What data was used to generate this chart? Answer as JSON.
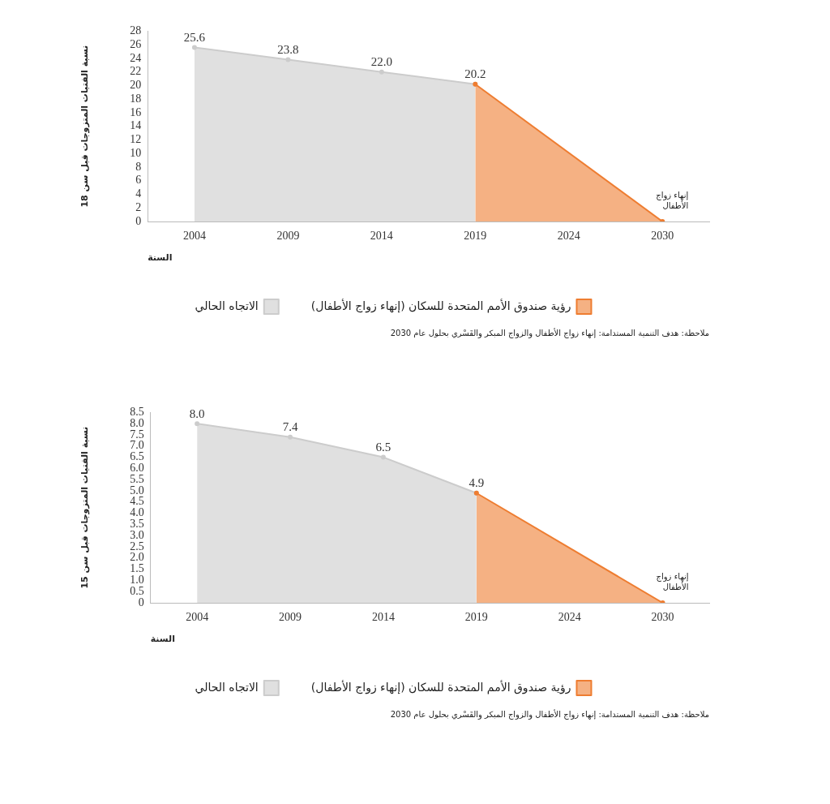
{
  "chart_data": [
    {
      "type": "area",
      "xlabel": "السنة",
      "ylabel": "نسبة الفتيات المتزوجات قبل سن 18",
      "categories": [
        "2004",
        "2009",
        "2014",
        "2019",
        "2024",
        "2030"
      ],
      "series": [
        {
          "name": "رؤية صندوق الأمم المتحدة للسكان (إنهاء زواج الأطفال)",
          "color": "#ee7d31",
          "values": [
            null,
            null,
            null,
            20.2,
            null,
            0
          ]
        },
        {
          "name": "الاتجاه الحالي",
          "color": "#cccccc",
          "values": [
            25.6,
            23.8,
            22.0,
            20.2,
            null,
            null
          ],
          "value_labels": [
            "25.6",
            "23.8",
            "22.0",
            "20.2",
            null,
            null
          ]
        }
      ],
      "ylim": [
        0,
        28
      ],
      "yticks": [
        0,
        2,
        4,
        6,
        8,
        10,
        12,
        14,
        16,
        18,
        20,
        22,
        24,
        26,
        28
      ],
      "grid": false,
      "legend": "bottom",
      "marker": "circle",
      "annotations": [
        {
          "text": "إنهاء زواج الأطفال",
          "x": "2030",
          "y": 0
        },
        "ملاحظة: هدف التنمية المستدامة: إنهاء زواج الأطفال والزواج المبكر والقَسْري بحلول عام 2030"
      ]
    },
    {
      "type": "area",
      "xlabel": "السنة",
      "ylabel": "نسبة الفتيات المتزوجات قبل سن 15",
      "categories": [
        "2004",
        "2009",
        "2014",
        "2019",
        "2024",
        "2030"
      ],
      "series": [
        {
          "name": "رؤية صندوق الأمم المتحدة للسكان (إنهاء زواج الأطفال)",
          "color": "#ee7d31",
          "values": [
            null,
            null,
            null,
            4.9,
            null,
            0
          ]
        },
        {
          "name": "الاتجاه الحالي",
          "color": "#cccccc",
          "values": [
            8.0,
            7.4,
            6.5,
            4.9,
            null,
            null
          ],
          "value_labels": [
            "8.0",
            "7.4",
            "6.5",
            "4.9",
            null,
            null
          ]
        }
      ],
      "ylim": [
        0,
        8.5
      ],
      "yticks": [
        0,
        {
          "value": 0.5,
          "label": "0.5"
        },
        {
          "value": 1,
          "label": "1.0"
        },
        {
          "value": 1.5,
          "label": "1.5"
        },
        {
          "value": 2,
          "label": "2.0"
        },
        {
          "value": 2.5,
          "label": "2.5"
        },
        {
          "value": 3,
          "label": "3.0"
        },
        {
          "value": 3.5,
          "label": "3.5"
        },
        {
          "value": 4,
          "label": "4.0"
        },
        {
          "value": 4.5,
          "label": "4.5"
        },
        {
          "value": 5,
          "label": "5.0"
        },
        {
          "value": 5.5,
          "label": "5.5"
        },
        {
          "value": 6,
          "label": "6.0"
        },
        {
          "value": 6.5,
          "label": "6.5"
        },
        {
          "value": 7,
          "label": "7.0"
        },
        {
          "value": 7.5,
          "label": "7.5"
        },
        {
          "value": 8,
          "label": "8.0"
        },
        {
          "value": 8.5,
          "label": "8.5"
        }
      ],
      "grid": false,
      "legend": "bottom",
      "marker": "circle",
      "annotations": [
        {
          "text": "إنهاء زواج الأطفال",
          "x": "2030",
          "y": 0
        },
        "ملاحظة: هدف التنمية المستدامة: إنهاء زواج الأطفال والزواج المبكر والقَسْري بحلول عام 2030"
      ]
    }
  ]
}
